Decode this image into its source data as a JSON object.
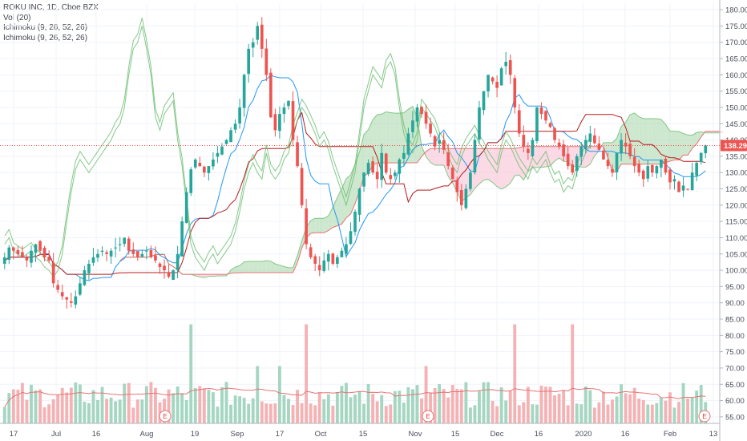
{
  "legend": {
    "symbol": "ROKU INC, 1D, Cboe BZX",
    "vol": "Vol (20)",
    "ichimoku1": "Ichimoku (9, 26, 52, 26)",
    "ichimoku2": "Ichimoku (9, 26, 52, 26)"
  },
  "colors": {
    "up": "#26a69a",
    "down": "#ef5350",
    "vol_up": "#a5d6c1",
    "vol_down": "#f5b2b4",
    "conversion": "#2196f3",
    "base": "#b71c1c",
    "lagging": "#66bb6a",
    "cloud_bull": "#a5d6a7",
    "cloud_bear": "#f8bbd0",
    "last_price": "#ef5350"
  },
  "earnings_markers": [
    {
      "label": "E",
      "date": "Aug 7"
    },
    {
      "label": "E",
      "date": "Nov 6"
    },
    {
      "label": "E",
      "date": "Feb 13"
    }
  ],
  "chart_data": {
    "type": "candlestick",
    "title": "ROKU INC, 1D, Cboe BZX",
    "x_tick_labels": [
      "17",
      "Jul",
      "16",
      "Aug",
      "19",
      "Sep",
      "17",
      "Oct",
      "15",
      "Nov",
      "15",
      "Dec",
      "16",
      "2020",
      "16",
      "Feb",
      "13"
    ],
    "y_ticks": [
      55,
      60,
      65,
      70,
      75,
      80,
      85,
      90,
      95,
      100,
      105,
      110,
      115,
      120,
      125,
      130,
      135,
      140,
      145,
      150,
      155,
      160,
      165,
      170,
      175,
      180
    ],
    "y_tick_labels": [
      "55.00",
      "60.00",
      "65.00",
      "70.00",
      "75.00",
      "80.00",
      "85.00",
      "90.00",
      "95.00",
      "100.00",
      "105.00",
      "110.00",
      "115.00",
      "120.00",
      "125.00",
      "130.00",
      "135.00",
      "140.00",
      "145.00",
      "150.00",
      "155.00",
      "160.00",
      "165.00",
      "170.00",
      "175.00",
      "180.00"
    ],
    "ylim": [
      53,
      182
    ],
    "last_price": 138.29,
    "last_price_label": "138.29",
    "close": [
      104,
      107,
      106,
      105,
      104,
      103,
      106,
      108,
      106,
      104,
      103,
      96,
      94,
      92,
      91,
      90,
      92,
      96,
      100,
      102,
      104,
      105,
      106,
      105,
      106,
      107,
      108,
      110,
      106,
      105,
      104,
      105,
      106,
      104,
      103,
      101,
      100,
      98,
      100,
      105,
      115,
      124,
      131,
      134,
      132,
      130,
      132,
      134,
      136,
      138,
      140,
      143,
      145,
      150,
      160,
      168,
      170,
      175,
      168,
      160,
      147,
      143,
      148,
      150,
      152,
      140,
      132,
      120,
      108,
      104,
      102,
      100,
      103,
      105,
      102,
      104,
      106,
      108,
      112,
      118,
      125,
      130,
      133,
      130,
      128,
      136,
      130,
      128,
      130,
      134,
      136,
      142,
      146,
      150,
      148,
      145,
      142,
      138,
      140,
      137,
      132,
      128,
      124,
      120,
      125,
      130,
      140,
      150,
      155,
      160,
      158,
      156,
      162,
      164,
      160,
      150,
      142,
      138,
      136,
      140,
      150,
      148,
      146,
      144,
      140,
      138,
      135,
      132,
      130,
      135,
      138,
      140,
      142,
      139,
      137,
      134,
      132,
      130,
      136,
      140,
      138,
      135,
      132,
      130,
      128,
      132,
      130,
      132,
      134,
      130,
      127,
      128,
      124,
      126,
      125,
      130,
      133,
      136,
      138.29
    ],
    "volume_note": "Vol (20) histogram with moving average line",
    "indicators": [
      "Ichimoku (9, 26, 52, 26)",
      "Ichimoku (9, 26, 52, 26)"
    ]
  }
}
